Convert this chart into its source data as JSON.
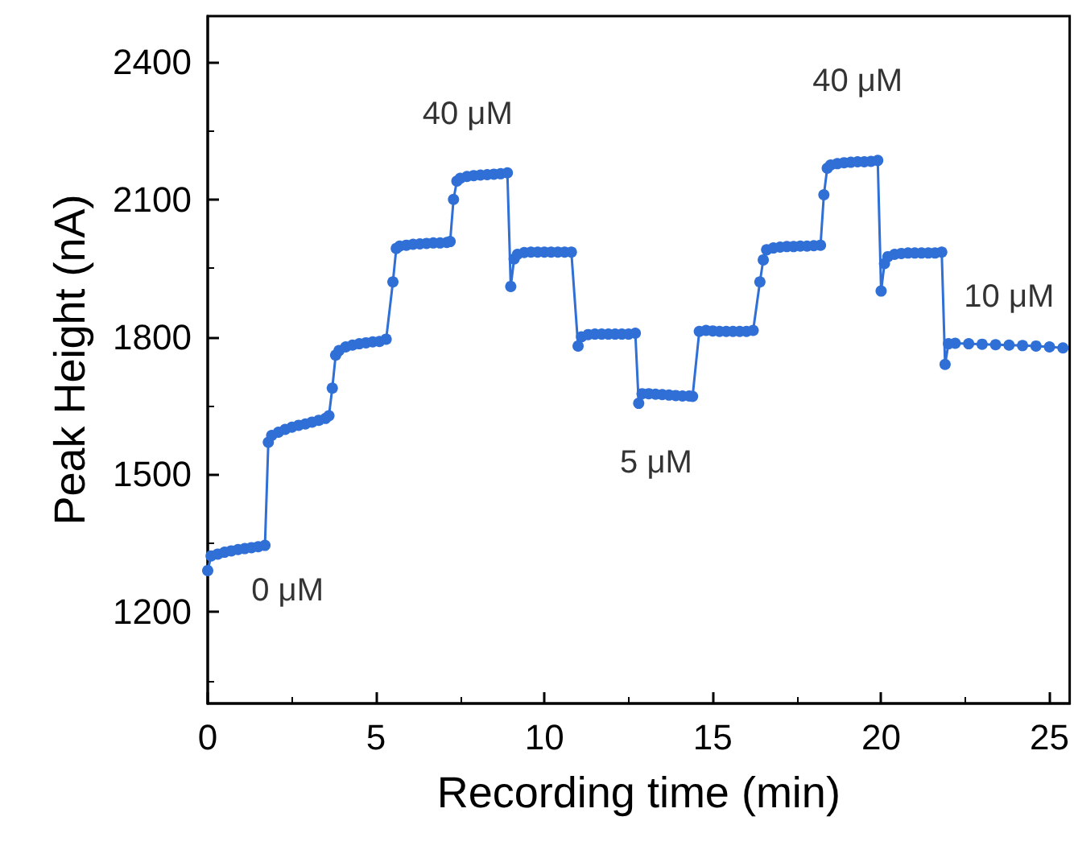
{
  "chart_data": {
    "type": "line",
    "xlabel": "Recording time (min)",
    "ylabel": "Peak Height (nA)",
    "xlim": [
      0,
      25.6
    ],
    "xticks": [
      0,
      5,
      10,
      15,
      20,
      25
    ],
    "ylim": [
      1000,
      2500
    ],
    "yticks": [
      1200,
      1500,
      1800,
      2100,
      2400
    ],
    "grid": false,
    "marker": "circle",
    "line_style": "solid",
    "annotations": [
      {
        "text": "0 μM",
        "x": 1.7,
        "y": 1345
      },
      {
        "text": "40 μM",
        "x": 8.1,
        "y": 2153
      },
      {
        "text": "5 μM",
        "x": 13.7,
        "y": 1673
      },
      {
        "text": "40 μM",
        "x": 19.3,
        "y": 2182
      },
      {
        "text": "10 μM",
        "x": 23.8,
        "y": 1782
      }
    ],
    "series": [
      {
        "color": "#2f6fd6",
        "x": [
          0.0,
          0.1,
          0.3,
          0.5,
          0.7,
          0.9,
          1.1,
          1.3,
          1.5,
          1.7,
          1.8,
          1.9,
          2.1,
          2.3,
          2.5,
          2.7,
          2.9,
          3.1,
          3.3,
          3.5,
          3.6,
          3.7,
          3.8,
          3.9,
          4.1,
          4.3,
          4.5,
          4.7,
          4.9,
          5.1,
          5.3,
          5.5,
          5.6,
          5.7,
          5.9,
          6.1,
          6.3,
          6.5,
          6.7,
          6.9,
          7.1,
          7.2,
          7.3,
          7.4,
          7.5,
          7.7,
          7.9,
          8.1,
          8.3,
          8.5,
          8.7,
          8.9,
          9.0,
          9.1,
          9.2,
          9.4,
          9.6,
          9.8,
          10.0,
          10.2,
          10.4,
          10.6,
          10.8,
          11.0,
          11.1,
          11.3,
          11.5,
          11.7,
          11.9,
          12.1,
          12.3,
          12.5,
          12.7,
          12.8,
          12.9,
          13.1,
          13.3,
          13.5,
          13.7,
          13.9,
          14.1,
          14.3,
          14.4,
          14.6,
          14.8,
          15.0,
          15.2,
          15.4,
          15.6,
          15.8,
          16.0,
          16.2,
          16.4,
          16.5,
          16.6,
          16.8,
          17.0,
          17.2,
          17.4,
          17.6,
          17.8,
          18.0,
          18.2,
          18.3,
          18.4,
          18.5,
          18.7,
          18.9,
          19.1,
          19.3,
          19.5,
          19.7,
          19.9,
          20.0,
          20.1,
          20.2,
          20.4,
          20.6,
          20.8,
          21.0,
          21.2,
          21.4,
          21.6,
          21.8,
          21.9,
          22.0,
          22.2,
          22.6,
          23.0,
          23.4,
          23.8,
          24.2,
          24.6,
          25.0,
          25.4
        ],
        "values": [
          1290,
          1322,
          1326,
          1330,
          1333,
          1336,
          1338,
          1340,
          1342,
          1345,
          1570,
          1585,
          1592,
          1598,
          1603,
          1607,
          1610,
          1614,
          1618,
          1622,
          1628,
          1688,
          1760,
          1770,
          1778,
          1782,
          1785,
          1787,
          1789,
          1790,
          1795,
          1920,
          1993,
          1998,
          2000,
          2002,
          2003,
          2004,
          2005,
          2005,
          2006,
          2008,
          2100,
          2140,
          2146,
          2150,
          2152,
          2153,
          2154,
          2155,
          2156,
          2158,
          1910,
          1970,
          1980,
          1984,
          1985,
          1985,
          1985,
          1985,
          1985,
          1985,
          1985,
          1780,
          1800,
          1805,
          1806,
          1806,
          1806,
          1806,
          1806,
          1806,
          1808,
          1655,
          1676,
          1676,
          1675,
          1674,
          1673,
          1672,
          1671,
          1671,
          1670,
          1812,
          1814,
          1813,
          1812,
          1812,
          1812,
          1812,
          1812,
          1814,
          1920,
          1968,
          1990,
          1994,
          1996,
          1997,
          1997,
          1998,
          1998,
          1999,
          2000,
          2110,
          2168,
          2175,
          2178,
          2180,
          2181,
          2182,
          2182,
          2183,
          2185,
          1900,
          1960,
          1975,
          1980,
          1982,
          1983,
          1983,
          1983,
          1983,
          1983,
          1985,
          1740,
          1785,
          1786,
          1785,
          1784,
          1783,
          1782,
          1781,
          1780,
          1778,
          1776
        ]
      }
    ]
  }
}
